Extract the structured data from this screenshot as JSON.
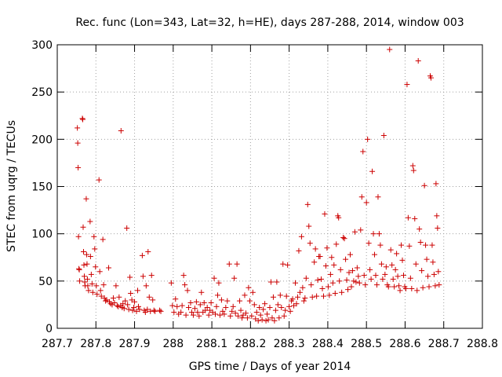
{
  "chart_data": {
    "type": "scatter",
    "title": "Rec. func (Lon=343, Lat=32, h=HE), days 287-288, 2014, window 003",
    "xlabel": "GPS time / Days of year 2014",
    "ylabel": "STEC from uqrg / TECUs",
    "xlim": [
      287.7,
      288.8
    ],
    "ylim": [
      0,
      300
    ],
    "xticks": [
      287.7,
      287.8,
      287.9,
      288.0,
      288.1,
      288.2,
      288.3,
      288.4,
      288.5,
      288.6,
      288.7,
      288.8
    ],
    "xtick_labels": [
      "287.7",
      "287.8",
      "287.9",
      "288",
      "288.1",
      "288.2",
      "288.3",
      "288.4",
      "288.5",
      "288.6",
      "288.7",
      "288.8"
    ],
    "yticks": [
      0,
      50,
      100,
      150,
      200,
      250,
      300
    ],
    "ytick_labels": [
      "0",
      "50",
      "100",
      "150",
      "200",
      "250",
      "300"
    ],
    "grid": true,
    "marker": "+",
    "color": "#cc0000",
    "points": [
      [
        287.752,
        212
      ],
      [
        287.753,
        196
      ],
      [
        287.754,
        170
      ],
      [
        287.755,
        97
      ],
      [
        287.756,
        63
      ],
      [
        287.757,
        62
      ],
      [
        287.758,
        50
      ],
      [
        287.765,
        222
      ],
      [
        287.766,
        221
      ],
      [
        287.767,
        107
      ],
      [
        287.768,
        81
      ],
      [
        287.769,
        67
      ],
      [
        287.77,
        55
      ],
      [
        287.771,
        49
      ],
      [
        287.772,
        45
      ],
      [
        287.775,
        137
      ],
      [
        287.776,
        78
      ],
      [
        287.777,
        68
      ],
      [
        287.778,
        52
      ],
      [
        287.779,
        45
      ],
      [
        287.781,
        40
      ],
      [
        287.785,
        113
      ],
      [
        287.786,
        76
      ],
      [
        287.788,
        57
      ],
      [
        287.79,
        47
      ],
      [
        287.792,
        38
      ],
      [
        287.795,
        97
      ],
      [
        287.797,
        84
      ],
      [
        287.799,
        65
      ],
      [
        287.801,
        45
      ],
      [
        287.803,
        36
      ],
      [
        287.808,
        157
      ],
      [
        287.81,
        60
      ],
      [
        287.812,
        40
      ],
      [
        287.814,
        34
      ],
      [
        287.818,
        94
      ],
      [
        287.82,
        46
      ],
      [
        287.822,
        32
      ],
      [
        287.825,
        29
      ],
      [
        287.828,
        30
      ],
      [
        287.833,
        64
      ],
      [
        287.835,
        28
      ],
      [
        287.838,
        26
      ],
      [
        287.842,
        25
      ],
      [
        287.845,
        32
      ],
      [
        287.848,
        27
      ],
      [
        287.852,
        45
      ],
      [
        287.855,
        24
      ],
      [
        287.858,
        23
      ],
      [
        287.86,
        33
      ],
      [
        287.864,
        24
      ],
      [
        287.865,
        209
      ],
      [
        287.868,
        22
      ],
      [
        287.87,
        26
      ],
      [
        287.873,
        21
      ],
      [
        287.876,
        29
      ],
      [
        287.88,
        106
      ],
      [
        287.882,
        25
      ],
      [
        287.885,
        20
      ],
      [
        287.888,
        54
      ],
      [
        287.89,
        37
      ],
      [
        287.893,
        30
      ],
      [
        287.895,
        19
      ],
      [
        287.898,
        22
      ],
      [
        287.9,
        28
      ],
      [
        287.905,
        18
      ],
      [
        287.908,
        40
      ],
      [
        287.91,
        23
      ],
      [
        287.913,
        20
      ],
      [
        287.92,
        77
      ],
      [
        287.922,
        55
      ],
      [
        287.925,
        19
      ],
      [
        287.928,
        17
      ],
      [
        287.93,
        45
      ],
      [
        287.933,
        20
      ],
      [
        287.935,
        81
      ],
      [
        287.938,
        33
      ],
      [
        287.941,
        18
      ],
      [
        287.944,
        56
      ],
      [
        287.947,
        30
      ],
      [
        287.95,
        19
      ],
      [
        287.953,
        18
      ],
      [
        287.965,
        19
      ],
      [
        287.968,
        18
      ],
      [
        287.995,
        48
      ],
      [
        287.998,
        24
      ],
      [
        288.002,
        17
      ],
      [
        288.006,
        31
      ],
      [
        288.01,
        23
      ],
      [
        288.014,
        15
      ],
      [
        288.02,
        17
      ],
      [
        288.023,
        24
      ],
      [
        288.027,
        56
      ],
      [
        288.03,
        46
      ],
      [
        288.033,
        14
      ],
      [
        288.037,
        40
      ],
      [
        288.04,
        22
      ],
      [
        288.045,
        27
      ],
      [
        288.048,
        17
      ],
      [
        288.052,
        14
      ],
      [
        288.056,
        21
      ],
      [
        288.06,
        28
      ],
      [
        288.063,
        17
      ],
      [
        288.067,
        13
      ],
      [
        288.07,
        25
      ],
      [
        288.073,
        38
      ],
      [
        288.077,
        17
      ],
      [
        288.08,
        27
      ],
      [
        288.083,
        19
      ],
      [
        288.088,
        22
      ],
      [
        288.092,
        14
      ],
      [
        288.095,
        19
      ],
      [
        288.098,
        27
      ],
      [
        288.102,
        17
      ],
      [
        288.106,
        53
      ],
      [
        288.109,
        15
      ],
      [
        288.112,
        23
      ],
      [
        288.115,
        35
      ],
      [
        288.118,
        48
      ],
      [
        288.121,
        14
      ],
      [
        288.125,
        30
      ],
      [
        288.128,
        18
      ],
      [
        288.132,
        15
      ],
      [
        288.136,
        22
      ],
      [
        288.14,
        29
      ],
      [
        288.145,
        68
      ],
      [
        288.148,
        13
      ],
      [
        288.152,
        18
      ],
      [
        288.155,
        23
      ],
      [
        288.158,
        53
      ],
      [
        288.161,
        16
      ],
      [
        288.165,
        68
      ],
      [
        288.168,
        13
      ],
      [
        288.172,
        29
      ],
      [
        288.175,
        19
      ],
      [
        288.178,
        11
      ],
      [
        288.181,
        14
      ],
      [
        288.185,
        35
      ],
      [
        288.188,
        16
      ],
      [
        288.192,
        11
      ],
      [
        288.195,
        43
      ],
      [
        288.198,
        29
      ],
      [
        288.203,
        13
      ],
      [
        288.206,
        38
      ],
      [
        288.21,
        25
      ],
      [
        288.213,
        10
      ],
      [
        288.216,
        17
      ],
      [
        288.22,
        8
      ],
      [
        288.223,
        22
      ],
      [
        288.226,
        14
      ],
      [
        288.23,
        9
      ],
      [
        288.233,
        20
      ],
      [
        288.237,
        26
      ],
      [
        288.24,
        8
      ],
      [
        288.243,
        15
      ],
      [
        288.246,
        9
      ],
      [
        288.25,
        22
      ],
      [
        288.253,
        49
      ],
      [
        288.256,
        11
      ],
      [
        288.259,
        33
      ],
      [
        288.262,
        8
      ],
      [
        288.265,
        19
      ],
      [
        288.268,
        49
      ],
      [
        288.271,
        25
      ],
      [
        288.274,
        11
      ],
      [
        288.277,
        35
      ],
      [
        288.28,
        22
      ],
      [
        288.284,
        68
      ],
      [
        288.287,
        13
      ],
      [
        288.29,
        19
      ],
      [
        288.293,
        34
      ],
      [
        288.296,
        67
      ],
      [
        288.3,
        23
      ],
      [
        288.303,
        18
      ],
      [
        288.306,
        29
      ],
      [
        288.309,
        31
      ],
      [
        288.312,
        24
      ],
      [
        288.316,
        48
      ],
      [
        288.319,
        26
      ],
      [
        288.322,
        33
      ],
      [
        288.325,
        82
      ],
      [
        288.328,
        38
      ],
      [
        288.332,
        97
      ],
      [
        288.335,
        43
      ],
      [
        288.338,
        29
      ],
      [
        288.341,
        32
      ],
      [
        288.344,
        53
      ],
      [
        288.348,
        131
      ],
      [
        288.351,
        108
      ],
      [
        288.354,
        90
      ],
      [
        288.357,
        46
      ],
      [
        288.36,
        33
      ],
      [
        288.365,
        70
      ],
      [
        288.368,
        84
      ],
      [
        288.371,
        34
      ],
      [
        288.374,
        51
      ],
      [
        288.377,
        76
      ],
      [
        288.38,
        76
      ],
      [
        288.383,
        52
      ],
      [
        288.386,
        42
      ],
      [
        288.389,
        34
      ],
      [
        288.392,
        121
      ],
      [
        288.395,
        66
      ],
      [
        288.398,
        85
      ],
      [
        288.401,
        44
      ],
      [
        288.404,
        35
      ],
      [
        288.407,
        57
      ],
      [
        288.41,
        75
      ],
      [
        288.413,
        48
      ],
      [
        288.416,
        67
      ],
      [
        288.419,
        37
      ],
      [
        288.422,
        89
      ],
      [
        288.426,
        119
      ],
      [
        288.428,
        117
      ],
      [
        288.43,
        50
      ],
      [
        288.433,
        62
      ],
      [
        288.436,
        38
      ],
      [
        288.44,
        96
      ],
      [
        288.443,
        95
      ],
      [
        288.446,
        73
      ],
      [
        288.449,
        51
      ],
      [
        288.452,
        41
      ],
      [
        288.455,
        59
      ],
      [
        288.458,
        78
      ],
      [
        288.461,
        44
      ],
      [
        288.464,
        61
      ],
      [
        288.467,
        50
      ],
      [
        288.47,
        102
      ],
      [
        288.473,
        49
      ],
      [
        288.476,
        64
      ],
      [
        288.479,
        55
      ],
      [
        288.482,
        48
      ],
      [
        288.485,
        104
      ],
      [
        288.488,
        139
      ],
      [
        288.491,
        187
      ],
      [
        288.494,
        56
      ],
      [
        288.497,
        46
      ],
      [
        288.5,
        133
      ],
      [
        288.503,
        200
      ],
      [
        288.506,
        90
      ],
      [
        288.509,
        62
      ],
      [
        288.512,
        52
      ],
      [
        288.515,
        166
      ],
      [
        288.518,
        100
      ],
      [
        288.521,
        78
      ],
      [
        288.524,
        56
      ],
      [
        288.527,
        46
      ],
      [
        288.53,
        139
      ],
      [
        288.533,
        100
      ],
      [
        288.536,
        88
      ],
      [
        288.539,
        68
      ],
      [
        288.542,
        52
      ],
      [
        288.545,
        204
      ],
      [
        288.548,
        57
      ],
      [
        288.551,
        65
      ],
      [
        288.554,
        46
      ],
      [
        288.557,
        44
      ],
      [
        288.56,
        295
      ],
      [
        288.563,
        83
      ],
      [
        288.566,
        67
      ],
      [
        288.569,
        52
      ],
      [
        288.572,
        44
      ],
      [
        288.575,
        62
      ],
      [
        288.578,
        79
      ],
      [
        288.581,
        55
      ],
      [
        288.584,
        45
      ],
      [
        288.587,
        40
      ],
      [
        288.59,
        88
      ],
      [
        288.593,
        72
      ],
      [
        288.596,
        56
      ],
      [
        288.599,
        44
      ],
      [
        288.602,
        42
      ],
      [
        288.605,
        258
      ],
      [
        288.608,
        117
      ],
      [
        288.611,
        87
      ],
      [
        288.614,
        53
      ],
      [
        288.617,
        42
      ],
      [
        288.62,
        172
      ],
      [
        288.622,
        167
      ],
      [
        288.625,
        116
      ],
      [
        288.628,
        68
      ],
      [
        288.631,
        40
      ],
      [
        288.634,
        283
      ],
      [
        288.637,
        105
      ],
      [
        288.64,
        91
      ],
      [
        288.643,
        61
      ],
      [
        288.646,
        43
      ],
      [
        288.65,
        151
      ],
      [
        288.653,
        88
      ],
      [
        288.656,
        73
      ],
      [
        288.659,
        55
      ],
      [
        288.662,
        44
      ],
      [
        288.665,
        267
      ],
      [
        288.667,
        265
      ],
      [
        288.67,
        88
      ],
      [
        288.672,
        70
      ],
      [
        288.675,
        57
      ],
      [
        288.678,
        45
      ],
      [
        288.68,
        153
      ],
      [
        288.682,
        119
      ],
      [
        288.684,
        106
      ],
      [
        288.686,
        60
      ],
      [
        288.688,
        46
      ]
    ]
  }
}
